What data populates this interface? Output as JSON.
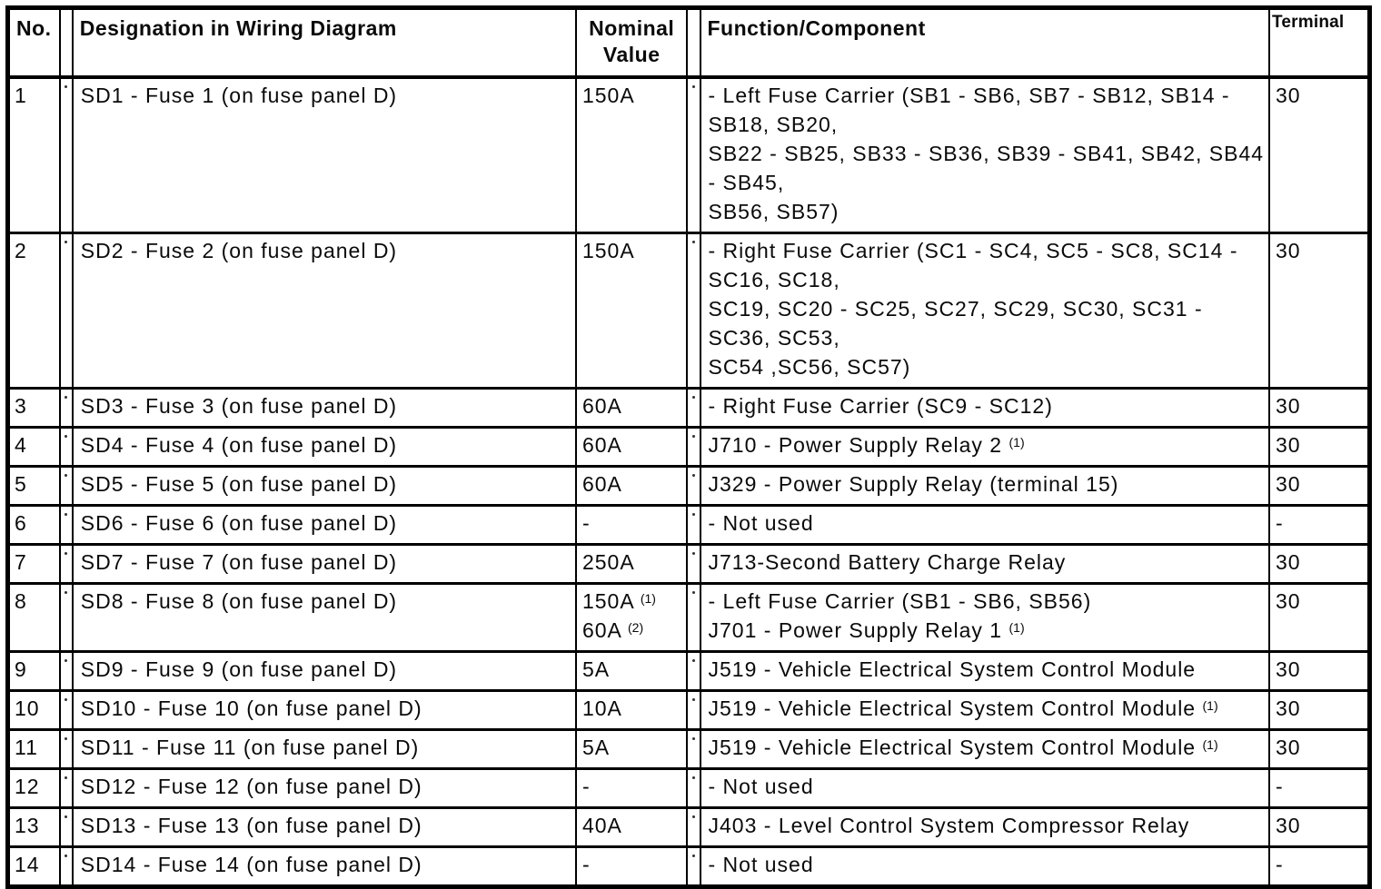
{
  "table": {
    "headers": {
      "no": "No.",
      "designation": "Designation in Wiring Diagram",
      "nominal": "Nominal Value",
      "function": "Function/Component",
      "terminal": "Terminal"
    },
    "rows": [
      {
        "no": "1",
        "designation": "SD1 - Fuse 1 (on fuse panel D)",
        "nominal": [
          "150A"
        ],
        "function": [
          "- Left Fuse Carrier (SB1 - SB6, SB7 - SB12, SB14 -",
          "SB18, SB20,",
          "SB22 - SB25, SB33 - SB36, SB39 - SB41, SB42, SB44",
          "- SB45,",
          "SB56, SB57)"
        ],
        "terminal": "30"
      },
      {
        "no": "2",
        "designation": "SD2 - Fuse 2 (on fuse panel D)",
        "nominal": [
          "150A"
        ],
        "function": [
          "- Right Fuse Carrier (SC1 - SC4, SC5 - SC8, SC14 -",
          "SC16, SC18,",
          "SC19, SC20 - SC25, SC27, SC29, SC30, SC31 -",
          "SC36, SC53,",
          "SC54 ,SC56, SC57)"
        ],
        "terminal": "30"
      },
      {
        "no": "3",
        "designation": "SD3 - Fuse 3 (on fuse panel D)",
        "nominal": [
          "60A"
        ],
        "function": [
          "- Right Fuse Carrier (SC9 - SC12)"
        ],
        "terminal": "30"
      },
      {
        "no": "4",
        "designation": "SD4 - Fuse 4 (on fuse panel D)",
        "nominal": [
          "60A"
        ],
        "function": [
          {
            "text": "J710 - Power Supply Relay 2",
            "sup": "(1)"
          }
        ],
        "terminal": "30"
      },
      {
        "no": "5",
        "designation": "SD5 - Fuse 5 (on fuse panel D)",
        "nominal": [
          "60A"
        ],
        "function": [
          "J329 - Power Supply Relay (terminal 15)"
        ],
        "terminal": "30"
      },
      {
        "no": "6",
        "designation": "SD6 - Fuse 6 (on fuse panel D)",
        "nominal": [
          "-"
        ],
        "function": [
          "- Not used"
        ],
        "terminal": "-"
      },
      {
        "no": "7",
        "designation": "SD7 - Fuse 7 (on fuse panel D)",
        "nominal": [
          "250A"
        ],
        "function": [
          "J713-Second Battery Charge Relay"
        ],
        "terminal": "30"
      },
      {
        "no": "8",
        "designation": "SD8 - Fuse 8 (on fuse panel D)",
        "nominal": [
          {
            "text": "150A",
            "sup": "(1)"
          },
          {
            "text": "60A",
            "sup": "(2)"
          }
        ],
        "function": [
          "- Left Fuse Carrier (SB1 - SB6, SB56)",
          {
            "text": "J701 - Power Supply Relay 1",
            "sup": "(1)"
          }
        ],
        "terminal": "30"
      },
      {
        "no": "9",
        "designation": "SD9 - Fuse 9 (on fuse panel D)",
        "nominal": [
          "5A"
        ],
        "function": [
          "J519 - Vehicle Electrical System Control Module"
        ],
        "terminal": "30"
      },
      {
        "no": "10",
        "designation": "SD10 - Fuse 10 (on fuse panel D)",
        "nominal": [
          "10A"
        ],
        "function": [
          {
            "text": "J519 - Vehicle Electrical System Control Module",
            "sup": "(1)"
          }
        ],
        "terminal": "30"
      },
      {
        "no": "11",
        "designation": "SD11 - Fuse 11 (on fuse panel D)",
        "nominal": [
          "5A"
        ],
        "function": [
          {
            "text": "J519 - Vehicle Electrical System Control Module",
            "sup": "(1)"
          }
        ],
        "terminal": "30"
      },
      {
        "no": "12",
        "designation": "SD12 - Fuse 12 (on fuse panel D)",
        "nominal": [
          "-"
        ],
        "function": [
          "- Not used"
        ],
        "terminal": "-"
      },
      {
        "no": "13",
        "designation": "SD13 - Fuse 13 (on fuse panel D)",
        "nominal": [
          "40A"
        ],
        "function": [
          "J403 - Level Control System Compressor Relay"
        ],
        "terminal": "30"
      },
      {
        "no": "14",
        "designation": "SD14 - Fuse 14 (on fuse panel D)",
        "nominal": [
          "-"
        ],
        "function": [
          "- Not used"
        ],
        "terminal": "-"
      }
    ]
  }
}
